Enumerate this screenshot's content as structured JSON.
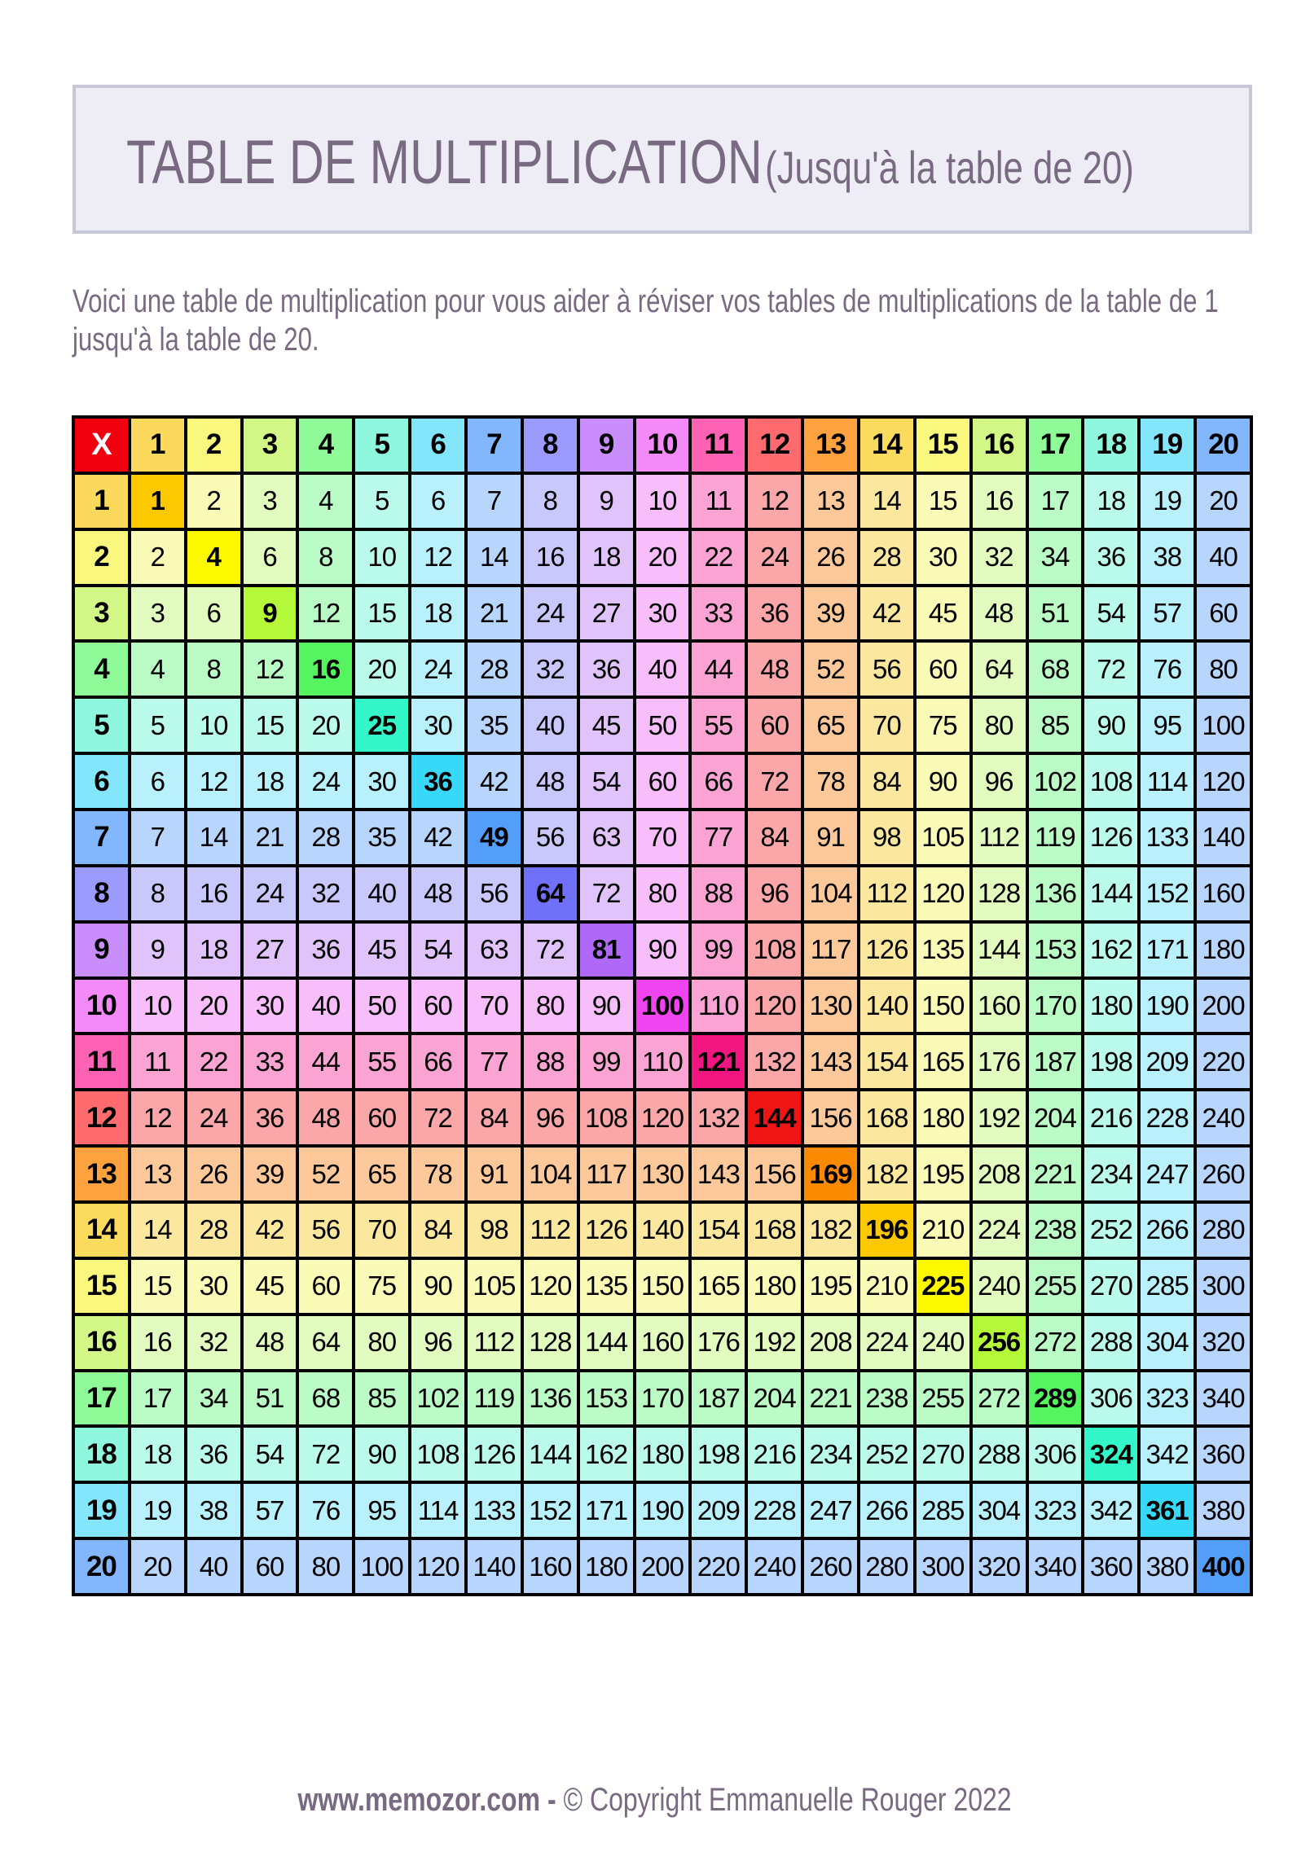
{
  "title": {
    "main": "TABLE DE MULTIPLICATION",
    "sub": "(Jusqu'à la table de 20)"
  },
  "description": "Voici une table de multiplication pour vous aider à réviser vos tables de multiplications de la table de 1 jusqu'à la table de 20.",
  "table": {
    "corner_label": "X",
    "headers": [
      "1",
      "2",
      "3",
      "4",
      "5",
      "6",
      "7",
      "8",
      "9",
      "10",
      "11",
      "12",
      "13",
      "14",
      "15",
      "16",
      "17",
      "18",
      "19",
      "20"
    ],
    "rows": [
      [
        1,
        2,
        3,
        4,
        5,
        6,
        7,
        8,
        9,
        10,
        11,
        12,
        13,
        14,
        15,
        16,
        17,
        18,
        19,
        20
      ],
      [
        2,
        4,
        6,
        8,
        10,
        12,
        14,
        16,
        18,
        20,
        22,
        24,
        26,
        28,
        30,
        32,
        34,
        36,
        38,
        40
      ],
      [
        3,
        6,
        9,
        12,
        15,
        18,
        21,
        24,
        27,
        30,
        33,
        36,
        39,
        42,
        45,
        48,
        51,
        54,
        57,
        60
      ],
      [
        4,
        8,
        12,
        16,
        20,
        24,
        28,
        32,
        36,
        40,
        44,
        48,
        52,
        56,
        60,
        64,
        68,
        72,
        76,
        80
      ],
      [
        5,
        10,
        15,
        20,
        25,
        30,
        35,
        40,
        45,
        50,
        55,
        60,
        65,
        70,
        75,
        80,
        85,
        90,
        95,
        100
      ],
      [
        6,
        12,
        18,
        24,
        30,
        36,
        42,
        48,
        54,
        60,
        66,
        72,
        78,
        84,
        90,
        96,
        102,
        108,
        114,
        120
      ],
      [
        7,
        14,
        21,
        28,
        35,
        42,
        49,
        56,
        63,
        70,
        77,
        84,
        91,
        98,
        105,
        112,
        119,
        126,
        133,
        140
      ],
      [
        8,
        16,
        24,
        32,
        40,
        48,
        56,
        64,
        72,
        80,
        88,
        96,
        104,
        112,
        120,
        128,
        136,
        144,
        152,
        160
      ],
      [
        9,
        18,
        27,
        36,
        45,
        54,
        63,
        72,
        81,
        90,
        99,
        108,
        117,
        126,
        135,
        144,
        153,
        162,
        171,
        180
      ],
      [
        10,
        20,
        30,
        40,
        50,
        60,
        70,
        80,
        90,
        100,
        110,
        120,
        130,
        140,
        150,
        160,
        170,
        180,
        190,
        200
      ],
      [
        11,
        22,
        33,
        44,
        55,
        66,
        77,
        88,
        99,
        110,
        121,
        132,
        143,
        154,
        165,
        176,
        187,
        198,
        209,
        220
      ],
      [
        12,
        24,
        36,
        48,
        60,
        72,
        84,
        96,
        108,
        120,
        132,
        144,
        156,
        168,
        180,
        192,
        204,
        216,
        228,
        240
      ],
      [
        13,
        26,
        39,
        52,
        65,
        78,
        91,
        104,
        117,
        130,
        143,
        156,
        169,
        182,
        195,
        208,
        221,
        234,
        247,
        260
      ],
      [
        14,
        28,
        42,
        56,
        70,
        84,
        98,
        112,
        126,
        140,
        154,
        168,
        182,
        196,
        210,
        224,
        238,
        252,
        266,
        280
      ],
      [
        15,
        30,
        45,
        60,
        75,
        90,
        105,
        120,
        135,
        150,
        165,
        180,
        195,
        210,
        225,
        240,
        255,
        270,
        285,
        300
      ],
      [
        16,
        32,
        48,
        64,
        80,
        96,
        112,
        128,
        144,
        160,
        176,
        192,
        208,
        224,
        240,
        256,
        272,
        288,
        304,
        320
      ],
      [
        17,
        34,
        51,
        68,
        85,
        102,
        119,
        136,
        153,
        170,
        187,
        204,
        221,
        238,
        255,
        272,
        289,
        306,
        323,
        340
      ],
      [
        18,
        36,
        54,
        72,
        90,
        108,
        126,
        144,
        162,
        180,
        198,
        216,
        234,
        252,
        270,
        288,
        306,
        324,
        342,
        360
      ],
      [
        19,
        38,
        57,
        76,
        95,
        114,
        133,
        152,
        171,
        190,
        209,
        228,
        247,
        266,
        285,
        304,
        323,
        342,
        361,
        380
      ],
      [
        20,
        40,
        60,
        80,
        100,
        120,
        140,
        160,
        180,
        200,
        220,
        240,
        260,
        280,
        300,
        320,
        340,
        360,
        380,
        400
      ]
    ],
    "colors": {
      "corner": "#F0000F",
      "header": [
        "#FBD95C",
        "#F9F77E",
        "#D3F787",
        "#8EFB98",
        "#8EF7DE",
        "#84E6FB",
        "#82B7FD",
        "#9B9BFD",
        "#C98EFB",
        "#F48AF8",
        "#FD62B4",
        "#FF6B6E",
        "#FDA23E",
        "#FBDB5E",
        "#F9F77E",
        "#D3F787",
        "#8EFB98",
        "#8EF7DE",
        "#84E6FB",
        "#82B7FD"
      ],
      "light": [
        "#FBE7A0",
        "#FBFBB8",
        "#E2FBBE",
        "#BBFBC5",
        "#BBFBEB",
        "#B8F0FB",
        "#B8D6FD",
        "#C8C8FD",
        "#E0C3FB",
        "#F8BDFB",
        "#FBA3D3",
        "#FBA6A8",
        "#FDC99A",
        "#FBE79D",
        "#FBFBB8",
        "#E2FBBE",
        "#BBFBC5",
        "#BBFBEB",
        "#B8F0FB",
        "#B8D6FD"
      ],
      "diagonal": [
        "#FCC800",
        "#FBF800",
        "#B5F83A",
        "#55F560",
        "#33F7C8",
        "#38D8F8",
        "#529EF8",
        "#7070F8",
        "#B068F8",
        "#F044F0",
        "#F0157F",
        "#F01515",
        "#FC8A00",
        "#FCC800",
        "#FBF800",
        "#B5F83A",
        "#55F560",
        "#33F7C8",
        "#38D8F8",
        "#529EF8"
      ]
    }
  },
  "footer": {
    "site": "www.memozor.com -",
    "copyright": "© Copyright Emmanuelle Rouger 2022"
  }
}
